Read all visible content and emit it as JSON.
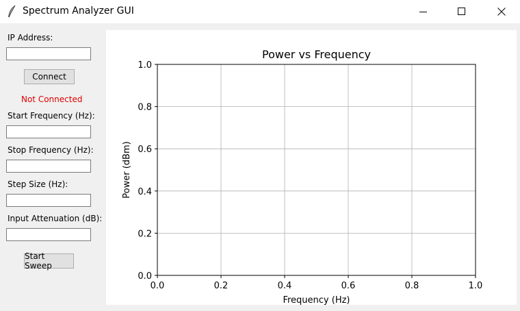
{
  "window": {
    "title": "Spectrum Analyzer GUI",
    "app_icon": "feather-icon",
    "controls": [
      "minimize-icon",
      "maximize-icon",
      "close-icon"
    ]
  },
  "panel": {
    "ip_label": "IP Address:",
    "ip_value": "",
    "connect_label": "Connect",
    "status_text": "Not Connected",
    "status_color": "#e00000",
    "start_freq_label": "Start Frequency (Hz):",
    "start_freq_value": "",
    "stop_freq_label": "Stop Frequency (Hz):",
    "stop_freq_value": "",
    "step_size_label": "Step Size (Hz):",
    "step_size_value": "",
    "attenuation_label": "Input Attenuation (dB):",
    "attenuation_value": "",
    "sweep_label": "Start Sweep"
  },
  "chart_data": {
    "type": "line",
    "title": "Power vs Frequency",
    "xlabel": "Frequency (Hz)",
    "ylabel": "Power (dBm)",
    "xlim": [
      0.0,
      1.0
    ],
    "ylim": [
      0.0,
      1.0
    ],
    "xticks": [
      "0.0",
      "0.2",
      "0.4",
      "0.6",
      "0.8",
      "1.0"
    ],
    "yticks": [
      "0.0",
      "0.2",
      "0.4",
      "0.6",
      "0.8",
      "1.0"
    ],
    "grid": true,
    "series": []
  }
}
